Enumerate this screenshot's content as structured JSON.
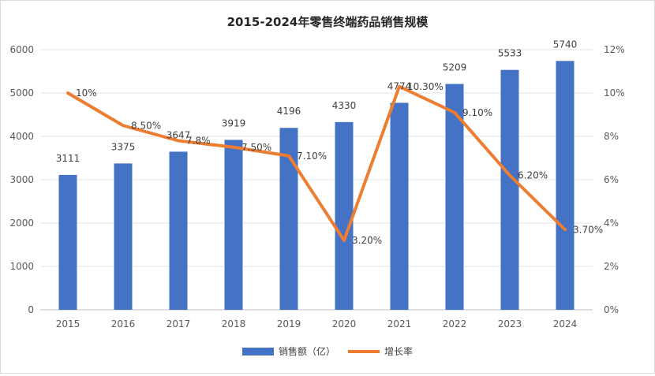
{
  "chart_data": {
    "type": "bar+line",
    "title": "2015-2024年零售终端药品销售规模",
    "categories": [
      "2015",
      "2016",
      "2017",
      "2018",
      "2019",
      "2020",
      "2021",
      "2022",
      "2023",
      "2024"
    ],
    "series": [
      {
        "name": "销售额（亿）",
        "type": "bar",
        "axis": "left",
        "values": [
          3111,
          3375,
          3647,
          3919,
          4196,
          4330,
          4774,
          5209,
          5533,
          5740
        ],
        "labels": [
          "3111",
          "3375",
          "3647",
          "3919",
          "4196",
          "4330",
          "4774",
          "5209",
          "5533",
          "5740"
        ],
        "color": "#4472c4"
      },
      {
        "name": "增长率",
        "type": "line",
        "axis": "right",
        "values": [
          10,
          8.5,
          7.8,
          7.5,
          7.1,
          3.2,
          10.3,
          9.1,
          6.2,
          3.7
        ],
        "labels": [
          "10%",
          "8.50%",
          "7.8%",
          "7.50%",
          "7.10%",
          "3.20%",
          "10.30%",
          "9.10%",
          "6.20%",
          "3.70%"
        ],
        "color": "#ed7d31"
      }
    ],
    "ylim": [
      0,
      6000
    ],
    "yticks": [
      "0",
      "1000",
      "2000",
      "3000",
      "4000",
      "5000",
      "6000"
    ],
    "y2lim": [
      0,
      12
    ],
    "y2ticks": [
      "0%",
      "2%",
      "4%",
      "6%",
      "8%",
      "10%",
      "12%"
    ],
    "grid": true,
    "legend": "bottom"
  }
}
